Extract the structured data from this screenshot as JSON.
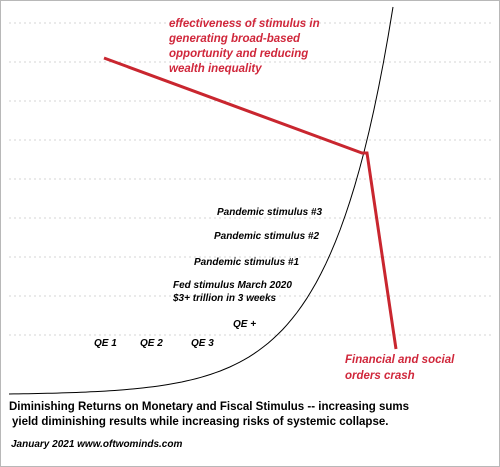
{
  "chart_data": {
    "type": "line",
    "title": "",
    "xlabel": "",
    "ylabel": "",
    "grid": true,
    "gridlines": "horizontal dashed",
    "colors": {
      "curve": "#000000",
      "effect_line": "#c9262f",
      "annotation": "#d0273b",
      "grid": "#c8c8c8"
    },
    "series": [
      {
        "values": [
          1,
          1.5,
          2.5,
          4,
          7,
          12,
          20,
          33,
          55,
          90,
          150,
          250,
          400
        ]
      }
    ],
    "labels": {
      "qe1": "QE 1",
      "qe2": "QE 2",
      "qe3": "QE 3",
      "qe_plus": "QE +",
      "fed_line1": "Fed stimulus March 2020",
      "fed_line2": "$3+ trillion in 3 weeks",
      "pandemic1": "Pandemic stimulus #1",
      "pandemic2": "Pandemic stimulus #2",
      "pandemic3": "Pandemic stimulus #3"
    },
    "annotations": {
      "effectiveness": [
        "effectiveness of stimulus in",
        "generating broad-based",
        "opportunity and reducing",
        "wealth inequality"
      ],
      "crash": [
        "Financial and social",
        "orders crash"
      ]
    }
  },
  "caption": {
    "line1": "Diminishing Returns on Monetary and Fiscal Stimulus -- increasing sums",
    "line2": "yield diminishing results while increasing risks of systemic collapse."
  },
  "credit": "January 2021    www.oftwominds.com"
}
